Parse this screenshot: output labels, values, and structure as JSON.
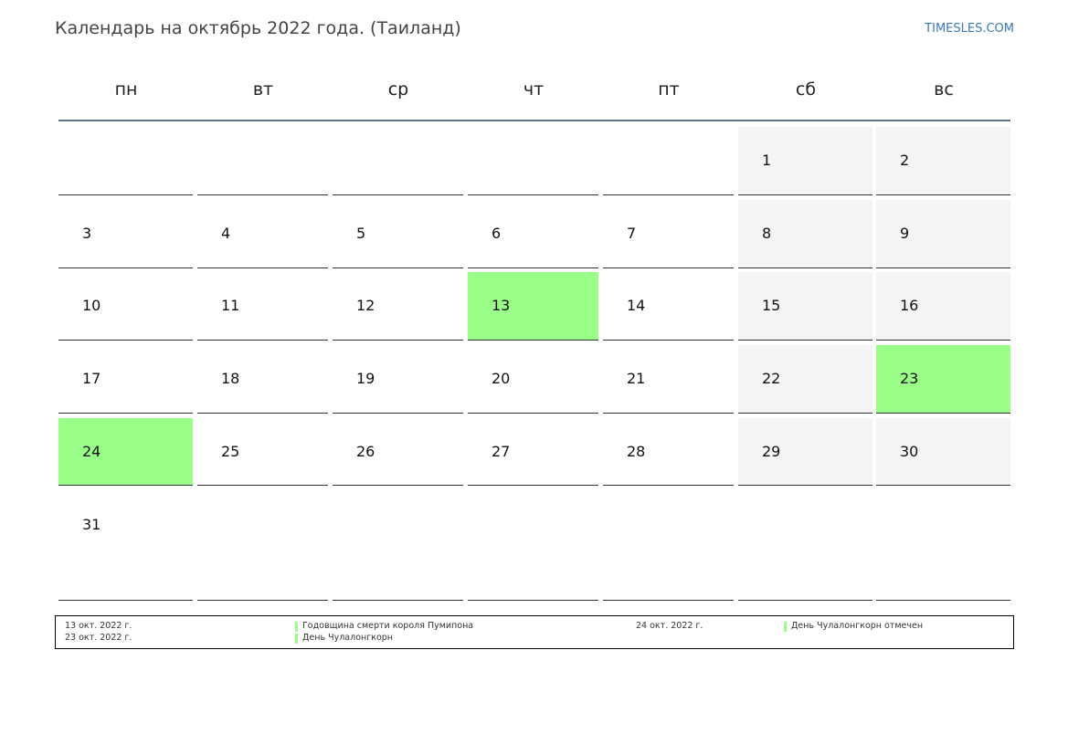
{
  "header": {
    "title": "Календарь на октябрь 2022 года. (Таиланд)",
    "site": "TIMESLES.COM"
  },
  "weekdays": [
    "пн",
    "вт",
    "ср",
    "чт",
    "пт",
    "сб",
    "вс"
  ],
  "weeks": [
    [
      null,
      null,
      null,
      null,
      null,
      1,
      2
    ],
    [
      3,
      4,
      5,
      6,
      7,
      8,
      9
    ],
    [
      10,
      11,
      12,
      13,
      14,
      15,
      16
    ],
    [
      17,
      18,
      19,
      20,
      21,
      22,
      23
    ],
    [
      24,
      25,
      26,
      27,
      28,
      29,
      30
    ],
    [
      31,
      null,
      null,
      null,
      null,
      null,
      null
    ]
  ],
  "highlighted_days": [
    13,
    23,
    24
  ],
  "weekend_columns": [
    5,
    6
  ],
  "colors": {
    "weekend": "#f4f4f4",
    "holiday": "#99ff88"
  },
  "holidays": [
    {
      "date": "13 окт. 2022 г.",
      "name": "Годовщина смерти короля Пумипона"
    },
    {
      "date": "23 окт. 2022 г.",
      "name": "День Чулалонгкорн"
    },
    {
      "date": "24 окт. 2022 г.",
      "name": "День Чулалонгкорн отмечен"
    }
  ]
}
